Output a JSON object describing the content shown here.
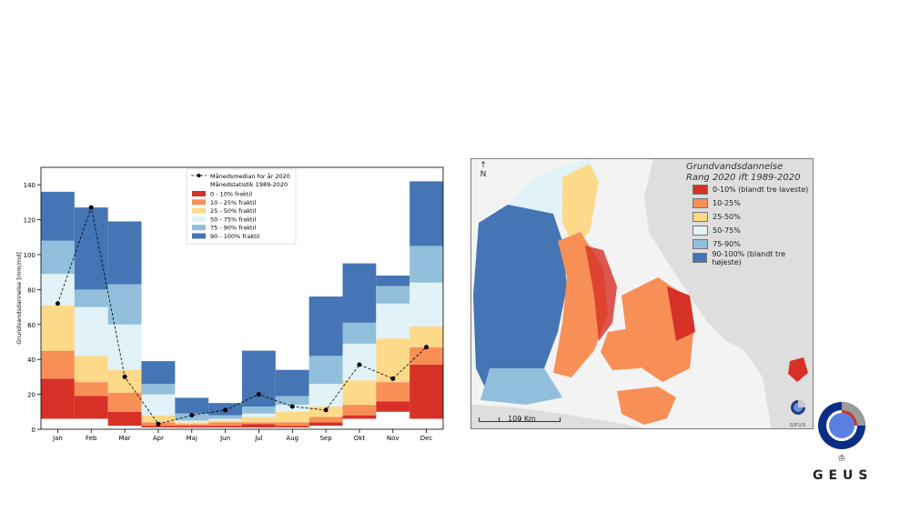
{
  "chart_data": {
    "type": "bar",
    "categories": [
      "Jan",
      "Feb",
      "Mar",
      "Apr",
      "Maj",
      "Jun",
      "Jul",
      "Aug",
      "Sep",
      "Okt",
      "Nov",
      "Dec"
    ],
    "ylabel": "Grundvandsdannelse [mm/md]",
    "xlabel": "",
    "ylim": [
      0,
      150
    ],
    "yticks": [
      0,
      20,
      40,
      60,
      80,
      100,
      120,
      140
    ],
    "legend_placement": "top-center",
    "legend": {
      "median_label": "Månedsmedian for år 2020",
      "stats_title": "Månedstatistik 1989-2020",
      "bands": [
        {
          "label": "0 - 10% fraktil",
          "color": "#d73027"
        },
        {
          "label": "10 - 25% fraktil",
          "color": "#f88f56"
        },
        {
          "label": "25 - 50% fraktil",
          "color": "#fdd98a"
        },
        {
          "label": "50 - 75% fraktil",
          "color": "#e1f2f8"
        },
        {
          "label": "75 - 90% fraktil",
          "color": "#91bfdb"
        },
        {
          "label": "90 - 100% fraktil",
          "color": "#4575b4"
        }
      ]
    },
    "series": [
      {
        "name": "Månedsmedian for år 2020",
        "values": [
          72,
          127,
          30,
          3,
          8,
          11,
          20,
          13,
          11,
          37,
          29,
          47
        ]
      }
    ],
    "bands_boundaries": [
      [
        6,
        29,
        45,
        71,
        89,
        108,
        136
      ],
      [
        6,
        19,
        27,
        42,
        70,
        80,
        127
      ],
      [
        2,
        10,
        21,
        34,
        60,
        83,
        119
      ],
      [
        1,
        2,
        4,
        8,
        20,
        26,
        39
      ],
      [
        1,
        2,
        3,
        4,
        5,
        9,
        18
      ],
      [
        1,
        2,
        4,
        5,
        6,
        8,
        15
      ],
      [
        1,
        3,
        4,
        7,
        9,
        13,
        45
      ],
      [
        1,
        2,
        4,
        10,
        14,
        19,
        34
      ],
      [
        2,
        4,
        7,
        13,
        26,
        42,
        76
      ],
      [
        6,
        8,
        14,
        28,
        49,
        61,
        95
      ],
      [
        10,
        16,
        27,
        52,
        72,
        82,
        88
      ],
      [
        6,
        37,
        47,
        59,
        84,
        105,
        142
      ]
    ]
  },
  "map": {
    "title_line1": "Grundvandsdannelse",
    "title_line2": "Rang 2020 ift 1989-2020",
    "legend": [
      {
        "label": "0-10%  (blandt tre laveste)",
        "color": "#d73027"
      },
      {
        "label": "10-25%",
        "color": "#f88f56"
      },
      {
        "label": "25-50%",
        "color": "#fdd98a"
      },
      {
        "label": "50-75%",
        "color": "#e1f2f8"
      },
      {
        "label": "75-90%",
        "color": "#91bfdb"
      },
      {
        "label": "90-100% (blandt tre højeste)",
        "color": "#4575b4"
      }
    ],
    "scale_label": "100 Km",
    "north_label": "N",
    "mini_logo_text": "GEUS"
  },
  "logo": {
    "text": "GEUS"
  }
}
